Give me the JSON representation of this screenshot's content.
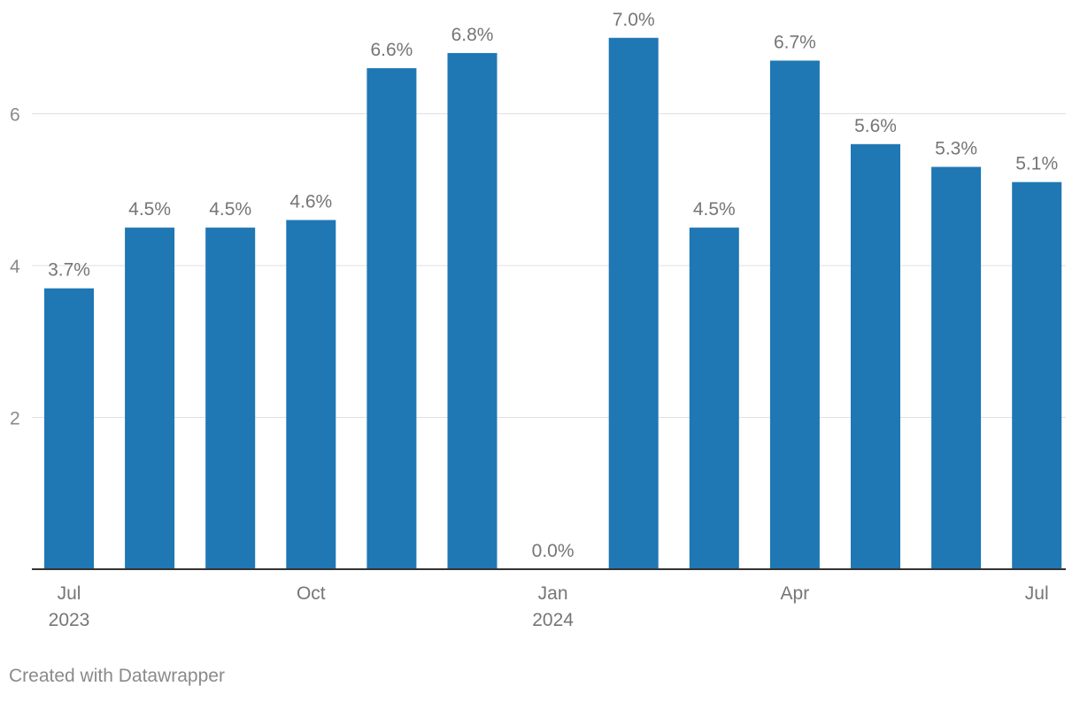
{
  "chart_data": {
    "type": "bar",
    "title": "",
    "xlabel": "",
    "ylabel": "",
    "categories": [
      "2023-07",
      "2023-08",
      "2023-09",
      "2023-10",
      "2023-11",
      "2023-12",
      "2024-01",
      "2024-02",
      "2024-03",
      "2024-04",
      "2024-05",
      "2024-06",
      "2024-07"
    ],
    "values": [
      3.7,
      4.5,
      4.5,
      4.6,
      6.6,
      6.8,
      0.0,
      7.0,
      4.5,
      6.7,
      5.6,
      5.3,
      5.1
    ],
    "value_labels": [
      "3.7%",
      "4.5%",
      "4.5%",
      "4.6%",
      "6.6%",
      "6.8%",
      "0.0%",
      "7.0%",
      "4.5%",
      "6.7%",
      "5.6%",
      "5.3%",
      "5.1%"
    ],
    "ylim": [
      0,
      7.5
    ],
    "yticks": [
      2,
      4,
      6
    ],
    "x_tick_labels": [
      {
        "index": 0,
        "label": "Jul",
        "sublabel": "2023"
      },
      {
        "index": 3,
        "label": "Oct",
        "sublabel": ""
      },
      {
        "index": 6,
        "label": "Jan",
        "sublabel": "2024"
      },
      {
        "index": 9,
        "label": "Apr",
        "sublabel": ""
      },
      {
        "index": 12,
        "label": "Jul",
        "sublabel": ""
      }
    ],
    "grid": true,
    "legend": "none",
    "bar_color": "#1f77b4",
    "label_color": "#767676",
    "axis_color": "#333333",
    "grid_color": "#e0e0e0"
  },
  "footer": {
    "credit": "Created with Datawrapper"
  }
}
